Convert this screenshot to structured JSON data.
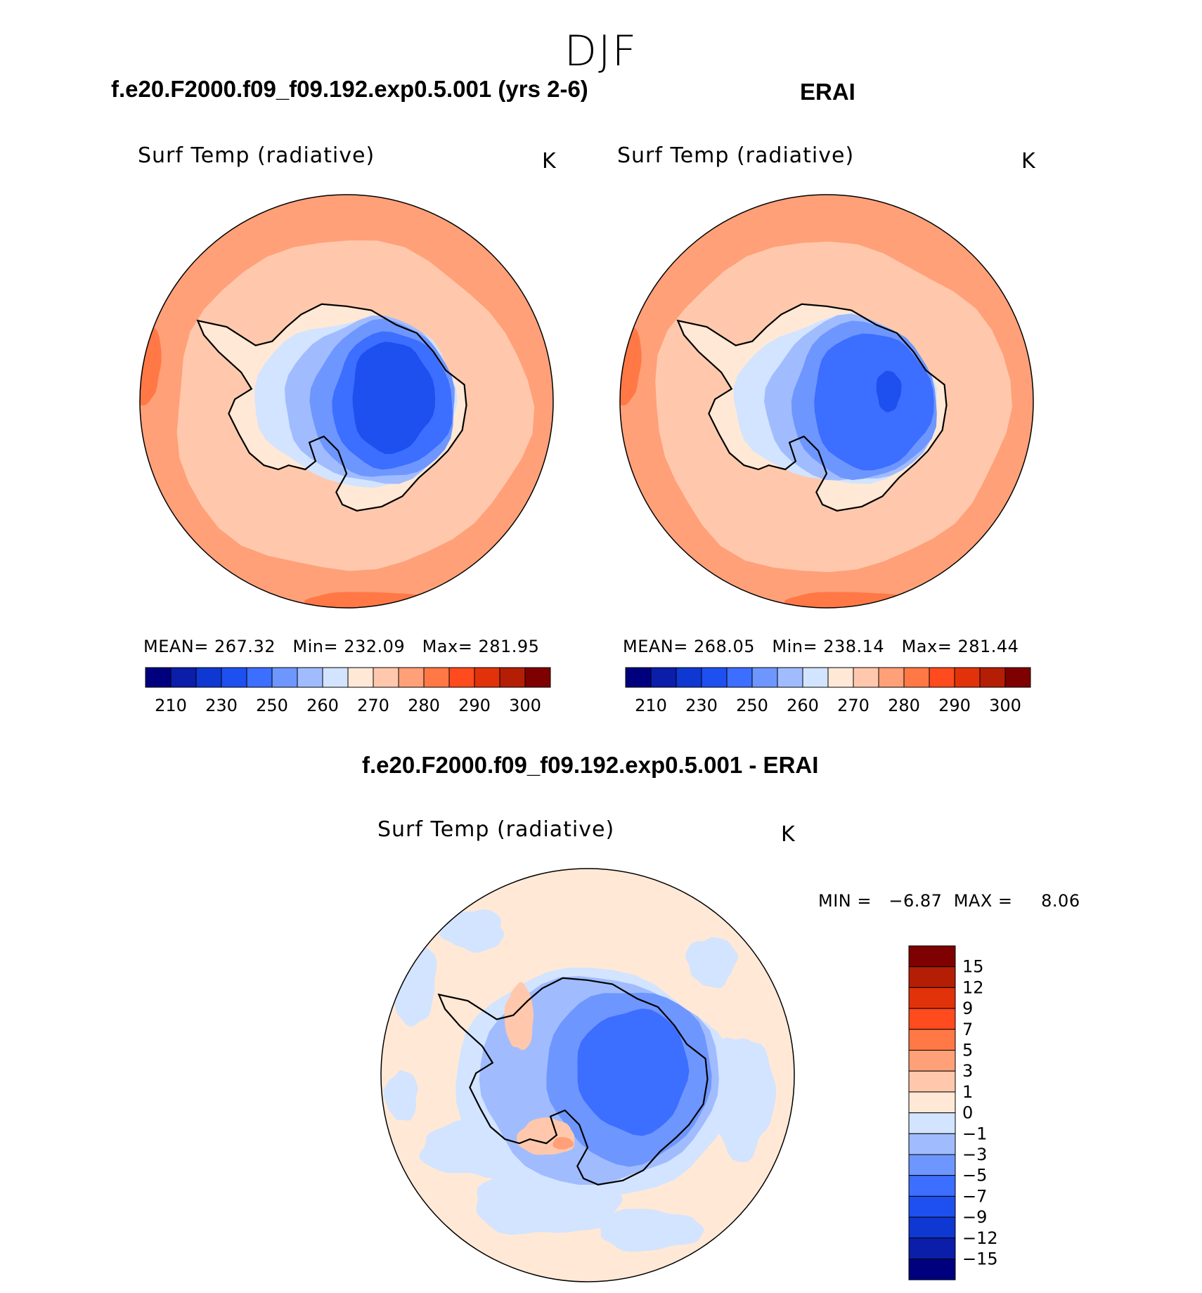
{
  "season": "DJF",
  "colors": {
    "abs_scale": [
      "#00007f",
      "#0a1eaa",
      "#0f37d2",
      "#1e50f0",
      "#3c6eff",
      "#6e96ff",
      "#a0bcff",
      "#d2e4ff",
      "#ffe8d6",
      "#ffc8ac",
      "#ffa078",
      "#ff7846",
      "#ff4b1e",
      "#e1320a",
      "#b41e05",
      "#7f0000"
    ],
    "diff_scale": [
      "#00007f",
      "#0a1eaa",
      "#0f37d2",
      "#1e50f0",
      "#3c6eff",
      "#6e96ff",
      "#a0bcff",
      "#d2e4ff",
      "#ffe8d6",
      "#ffc8ac",
      "#ffa078",
      "#ff7846",
      "#ff4b1e",
      "#e1320a",
      "#b41e05",
      "#7f0000"
    ],
    "coastline": "#000000"
  },
  "panels": [
    {
      "id": "model",
      "case_title": "f.e20.F2000.f09_f09.192.exp0.5.001 (yrs 2-6)",
      "variable": "Surf Temp (radiative)",
      "units": "K",
      "stats": {
        "mean_label": "MEAN=",
        "mean": "267.32",
        "min_label": "Min=",
        "min": "232.09",
        "max_label": "Max=",
        "max": "281.95"
      },
      "colorbar_ticks": [
        "210",
        "230",
        "250",
        "260",
        "270",
        "280",
        "290",
        "300"
      ]
    },
    {
      "id": "obs",
      "case_title": "ERAI",
      "variable": "Surf Temp (radiative)",
      "units": "K",
      "stats": {
        "mean_label": "MEAN=",
        "mean": "268.05",
        "min_label": "Min=",
        "min": "238.14",
        "max_label": "Max=",
        "max": "281.44"
      },
      "colorbar_ticks": [
        "210",
        "230",
        "250",
        "260",
        "270",
        "280",
        "290",
        "300"
      ]
    }
  ],
  "difference": {
    "title": "f.e20.F2000.f09_f09.192.exp0.5.001 - ERAI",
    "variable": "Surf Temp (radiative)",
    "units": "K",
    "stats": {
      "min_label": "MIN =",
      "min": "−6.87",
      "max_label": "MAX =",
      "max": "8.06"
    },
    "colorbar_ticks": [
      "15",
      "12",
      "9",
      "7",
      "5",
      "3",
      "1",
      "0",
      "−1",
      "−3",
      "−5",
      "−7",
      "−9",
      "−12",
      "−15"
    ]
  },
  "chart_data": [
    {
      "type": "heatmap",
      "title": "f.e20.F2000.f09_f09.192.exp0.5.001 (yrs 2-6)",
      "subtitle": "Surf Temp (radiative)",
      "units": "K",
      "projection": "south polar stereographic",
      "mean": 267.32,
      "min": 232.09,
      "max": 281.95,
      "levels": [
        210,
        220,
        230,
        240,
        250,
        255,
        260,
        265,
        270,
        275,
        280,
        285,
        290,
        295,
        300
      ]
    },
    {
      "type": "heatmap",
      "title": "ERAI",
      "subtitle": "Surf Temp (radiative)",
      "units": "K",
      "projection": "south polar stereographic",
      "mean": 268.05,
      "min": 238.14,
      "max": 281.44,
      "levels": [
        210,
        220,
        230,
        240,
        250,
        255,
        260,
        265,
        270,
        275,
        280,
        285,
        290,
        295,
        300
      ]
    },
    {
      "type": "heatmap",
      "title": "f.e20.F2000.f09_f09.192.exp0.5.001 - ERAI",
      "subtitle": "Surf Temp (radiative)",
      "units": "K",
      "projection": "south polar stereographic",
      "min": -6.87,
      "max": 8.06,
      "levels": [
        -15,
        -12,
        -9,
        -7,
        -5,
        -3,
        -1,
        0,
        1,
        3,
        5,
        7,
        9,
        12,
        15
      ]
    }
  ]
}
